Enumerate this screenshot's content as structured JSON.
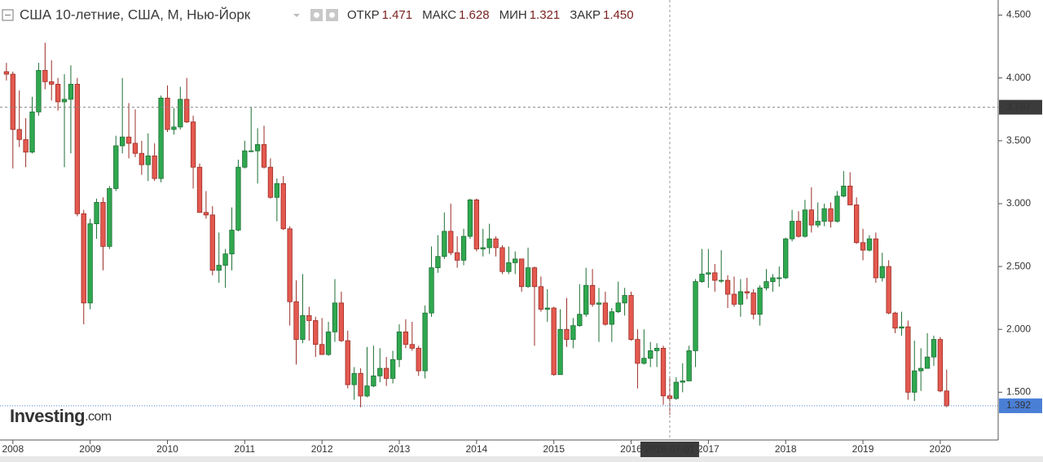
{
  "chart_data": {
    "type": "candlestick",
    "title": "США 10-летние, США, М, Нью-Йорк",
    "logo": {
      "main": "Investing",
      "suffix": ".com"
    },
    "x": [
      "2007-12-01",
      "2008-01-01",
      "2008-02-01",
      "2008-03-01",
      "2008-04-01",
      "2008-05-01",
      "2008-06-01",
      "2008-07-01",
      "2008-08-01",
      "2008-09-01",
      "2008-10-01",
      "2008-11-01",
      "2008-12-01",
      "2009-01-01",
      "2009-02-01",
      "2009-03-01",
      "2009-04-01",
      "2009-05-01",
      "2009-06-01",
      "2009-07-01",
      "2009-08-01",
      "2009-09-01",
      "2009-10-01",
      "2009-11-01",
      "2009-12-01",
      "2010-01-01",
      "2010-02-01",
      "2010-03-01",
      "2010-04-01",
      "2010-05-01",
      "2010-06-01",
      "2010-07-01",
      "2010-08-01",
      "2010-09-01",
      "2010-10-01",
      "2010-11-01",
      "2010-12-01",
      "2011-01-01",
      "2011-02-01",
      "2011-03-01",
      "2011-04-01",
      "2011-05-01",
      "2011-06-01",
      "2011-07-01",
      "2011-08-01",
      "2011-09-01",
      "2011-10-01",
      "2011-11-01",
      "2011-12-01",
      "2012-01-01",
      "2012-02-01",
      "2012-03-01",
      "2012-04-01",
      "2012-05-01",
      "2012-06-01",
      "2012-07-01",
      "2012-08-01",
      "2012-09-01",
      "2012-10-01",
      "2012-11-01",
      "2012-12-01",
      "2013-01-01",
      "2013-02-01",
      "2013-03-01",
      "2013-04-01",
      "2013-05-01",
      "2013-06-01",
      "2013-07-01",
      "2013-08-01",
      "2013-09-01",
      "2013-10-01",
      "2013-11-01",
      "2013-12-01",
      "2014-01-01",
      "2014-02-01",
      "2014-03-01",
      "2014-04-01",
      "2014-05-01",
      "2014-06-01",
      "2014-07-01",
      "2014-08-01",
      "2014-09-01",
      "2014-10-01",
      "2014-11-01",
      "2014-12-01",
      "2015-01-01",
      "2015-02-01",
      "2015-03-01",
      "2015-04-01",
      "2015-05-01",
      "2015-06-01",
      "2015-07-01",
      "2015-08-01",
      "2015-09-01",
      "2015-10-01",
      "2015-11-01",
      "2015-12-01",
      "2016-01-01",
      "2016-02-01",
      "2016-03-01",
      "2016-04-01",
      "2016-05-01",
      "2016-06-01",
      "2016-07-01",
      "2016-08-01",
      "2016-09-01",
      "2016-10-01",
      "2016-11-01",
      "2016-12-01",
      "2017-01-01",
      "2017-02-01",
      "2017-03-01",
      "2017-04-01",
      "2017-05-01",
      "2017-06-01",
      "2017-07-01",
      "2017-08-01",
      "2017-09-01",
      "2017-10-01",
      "2017-11-01",
      "2017-12-01",
      "2018-01-01",
      "2018-02-01",
      "2018-03-01",
      "2018-04-01",
      "2018-05-01",
      "2018-06-01",
      "2018-07-01",
      "2018-08-01",
      "2018-09-01",
      "2018-10-01",
      "2018-11-01",
      "2018-12-01",
      "2019-01-01",
      "2019-02-01",
      "2019-03-01",
      "2019-04-01",
      "2019-05-01",
      "2019-06-01",
      "2019-07-01",
      "2019-08-01",
      "2019-09-01",
      "2019-10-01",
      "2019-11-01",
      "2019-12-01",
      "2020-01-01",
      "2020-02-01"
    ],
    "open": [
      4.05,
      4.03,
      3.59,
      3.51,
      3.41,
      3.73,
      4.06,
      3.97,
      3.95,
      3.81,
      3.83,
      3.95,
      2.92,
      2.21,
      2.84,
      3.01,
      2.66,
      3.12,
      3.46,
      3.53,
      3.48,
      3.4,
      3.31,
      3.38,
      3.2,
      3.84,
      3.59,
      3.61,
      3.83,
      3.65,
      3.29,
      2.93,
      2.91,
      2.47,
      2.51,
      2.6,
      2.79,
      3.29,
      3.42,
      3.42,
      3.47,
      3.29,
      3.05,
      3.16,
      2.8,
      2.22,
      1.92,
      2.11,
      2.07,
      1.88,
      1.8,
      1.98,
      2.21,
      1.91,
      1.56,
      1.65,
      1.47,
      1.55,
      1.63,
      1.69,
      1.61,
      1.76,
      1.98,
      1.88,
      1.85,
      1.67,
      2.13,
      2.49,
      2.58,
      2.78,
      2.61,
      2.55,
      2.74,
      3.03,
      2.64,
      2.65,
      2.72,
      2.65,
      2.46,
      2.53,
      2.56,
      2.34,
      2.49,
      2.34,
      2.16,
      2.17,
      1.64,
      2.0,
      1.92,
      2.03,
      2.12,
      2.35,
      2.2,
      2.21,
      2.04,
      2.14,
      2.21,
      2.27,
      1.92,
      1.73,
      1.77,
      1.83,
      1.85,
      1.471,
      1.45,
      1.58,
      1.59,
      1.83,
      2.38,
      2.44,
      2.45,
      2.39,
      2.39,
      2.28,
      2.2,
      2.3,
      2.29,
      2.12,
      2.33,
      2.38,
      2.41,
      2.41,
      2.72,
      2.86,
      2.74,
      2.95,
      2.83,
      2.86,
      2.96,
      2.86,
      3.06,
      3.14,
      2.99,
      2.69,
      2.63,
      2.72,
      2.41,
      2.5,
      2.13,
      2.01,
      2.02,
      1.5,
      1.67,
      1.69,
      1.78,
      1.92,
      1.51
    ],
    "high": [
      4.12,
      4.05,
      3.9,
      3.68,
      3.85,
      4.12,
      4.28,
      4.14,
      4.0,
      4.03,
      4.1,
      4.0,
      2.95,
      2.88,
      3.04,
      3.05,
      3.14,
      3.54,
      4.0,
      3.8,
      3.75,
      3.5,
      3.56,
      3.48,
      3.86,
      3.94,
      3.76,
      3.93,
      4.0,
      3.7,
      3.32,
      3.1,
      2.98,
      2.77,
      2.64,
      2.97,
      3.35,
      3.5,
      3.77,
      3.6,
      3.62,
      3.36,
      3.2,
      3.22,
      2.82,
      2.39,
      2.44,
      2.18,
      2.1,
      2.09,
      2.06,
      2.4,
      2.3,
      1.99,
      1.7,
      1.69,
      1.86,
      1.87,
      1.85,
      1.78,
      1.83,
      2.04,
      2.08,
      2.06,
      1.87,
      2.19,
      2.66,
      2.75,
      2.93,
      3.0,
      2.74,
      2.8,
      3.04,
      3.04,
      2.8,
      2.84,
      2.74,
      2.67,
      2.66,
      2.62,
      2.56,
      2.65,
      2.5,
      2.42,
      2.32,
      2.18,
      2.16,
      2.25,
      2.09,
      2.36,
      2.49,
      2.48,
      2.33,
      2.3,
      2.17,
      2.38,
      2.33,
      2.3,
      2.0,
      2.0,
      1.9,
      1.89,
      1.87,
      1.628,
      1.62,
      1.73,
      1.87,
      2.4,
      2.64,
      2.64,
      2.52,
      2.63,
      2.43,
      2.42,
      2.4,
      2.41,
      2.32,
      2.35,
      2.48,
      2.44,
      2.5,
      2.73,
      2.95,
      2.94,
      3.03,
      3.13,
      3.01,
      3.0,
      3.01,
      3.1,
      3.26,
      3.25,
      3.05,
      2.8,
      2.75,
      2.77,
      2.61,
      2.55,
      2.14,
      2.14,
      2.07,
      1.91,
      1.85,
      1.97,
      1.95,
      1.94,
      1.68
    ],
    "low": [
      3.98,
      3.28,
      3.45,
      3.29,
      3.4,
      3.7,
      3.91,
      3.82,
      3.74,
      3.29,
      3.4,
      2.9,
      2.04,
      2.16,
      2.72,
      2.47,
      2.64,
      3.1,
      3.4,
      3.36,
      3.37,
      3.23,
      3.18,
      3.18,
      3.17,
      3.57,
      3.55,
      3.59,
      3.64,
      3.12,
      2.93,
      2.88,
      2.43,
      2.37,
      2.33,
      2.47,
      2.78,
      3.28,
      3.41,
      3.16,
      3.28,
      3.04,
      2.86,
      2.79,
      2.03,
      1.72,
      1.89,
      1.91,
      1.78,
      1.8,
      1.79,
      1.9,
      1.9,
      1.53,
      1.44,
      1.38,
      1.46,
      1.54,
      1.58,
      1.55,
      1.57,
      1.7,
      1.85,
      1.83,
      1.63,
      1.61,
      2.1,
      2.45,
      2.56,
      2.59,
      2.49,
      2.51,
      2.72,
      2.62,
      2.58,
      2.6,
      2.58,
      2.44,
      2.44,
      2.44,
      2.3,
      2.33,
      1.87,
      2.14,
      2.06,
      1.63,
      1.64,
      1.86,
      1.85,
      2.02,
      2.1,
      2.18,
      1.9,
      2.03,
      1.9,
      2.13,
      2.11,
      1.91,
      1.53,
      1.72,
      1.7,
      1.7,
      1.4,
      1.321,
      1.44,
      1.5,
      1.59,
      1.7,
      2.37,
      2.33,
      2.3,
      2.37,
      2.17,
      2.18,
      2.1,
      2.24,
      2.08,
      2.03,
      2.31,
      2.3,
      2.34,
      2.4,
      2.7,
      2.73,
      2.73,
      2.77,
      2.81,
      2.82,
      2.81,
      2.85,
      3.05,
      2.99,
      2.68,
      2.55,
      2.62,
      2.37,
      2.38,
      2.12,
      1.97,
      1.95,
      1.44,
      1.43,
      1.51,
      1.69,
      1.71,
      1.5,
      1.38
    ],
    "close": [
      4.03,
      3.59,
      3.51,
      3.41,
      3.73,
      4.06,
      3.97,
      3.95,
      3.81,
      3.83,
      3.95,
      2.92,
      2.21,
      2.84,
      3.01,
      2.66,
      3.12,
      3.46,
      3.53,
      3.48,
      3.4,
      3.31,
      3.38,
      3.2,
      3.84,
      3.59,
      3.61,
      3.83,
      3.65,
      3.29,
      2.93,
      2.91,
      2.47,
      2.51,
      2.6,
      2.79,
      3.29,
      3.42,
      3.42,
      3.47,
      3.29,
      3.05,
      3.16,
      2.8,
      2.22,
      1.92,
      2.11,
      2.07,
      1.88,
      1.8,
      1.98,
      2.21,
      1.91,
      1.56,
      1.65,
      1.47,
      1.55,
      1.63,
      1.69,
      1.61,
      1.76,
      1.98,
      1.88,
      1.85,
      1.67,
      2.13,
      2.49,
      2.58,
      2.78,
      2.61,
      2.55,
      2.74,
      3.03,
      2.64,
      2.65,
      2.72,
      2.65,
      2.46,
      2.53,
      2.56,
      2.34,
      2.49,
      2.34,
      2.16,
      2.17,
      1.64,
      2.0,
      1.92,
      2.03,
      2.12,
      2.35,
      2.2,
      2.21,
      2.04,
      2.14,
      2.21,
      2.27,
      1.92,
      1.73,
      1.77,
      1.83,
      1.85,
      1.471,
      1.45,
      1.58,
      1.59,
      1.83,
      2.38,
      2.44,
      2.45,
      2.39,
      2.39,
      2.28,
      2.2,
      2.3,
      2.29,
      2.12,
      2.33,
      2.38,
      2.41,
      2.41,
      2.72,
      2.86,
      2.74,
      2.95,
      2.83,
      2.86,
      2.96,
      2.86,
      3.06,
      3.14,
      2.99,
      2.69,
      2.63,
      2.72,
      2.41,
      2.5,
      2.13,
      2.01,
      2.02,
      1.5,
      1.67,
      1.69,
      1.78,
      1.92,
      1.51,
      1.392
    ],
    "up_color": "#2fa84f",
    "down_color": "#e4594f",
    "ylim": [
      1.12,
      4.62
    ],
    "yticks": [
      {
        "value": 1.5,
        "label": "1.500"
      },
      {
        "value": 2,
        "label": "2.000"
      },
      {
        "value": 2.5,
        "label": "2.500"
      },
      {
        "value": 3,
        "label": "3.000"
      },
      {
        "value": 3.5,
        "label": "3.500"
      },
      {
        "value": 4,
        "label": "4.000"
      },
      {
        "value": 4.5,
        "label": "4.500"
      }
    ],
    "xlim": [
      "2007-11-01",
      "2020-10-01"
    ],
    "xticks": [
      {
        "value": "2008-01-01",
        "label": "2008"
      },
      {
        "value": "2009-01-01",
        "label": "2009"
      },
      {
        "value": "2010-01-01",
        "label": "2010"
      },
      {
        "value": "2011-01-01",
        "label": "2011"
      },
      {
        "value": "2012-01-01",
        "label": "2012"
      },
      {
        "value": "2013-01-01",
        "label": "2013"
      },
      {
        "value": "2014-01-01",
        "label": "2014"
      },
      {
        "value": "2015-01-01",
        "label": "2015"
      },
      {
        "value": "2016-01-01",
        "label": "2016"
      },
      {
        "value": "2017-01-01",
        "label": "2017"
      },
      {
        "value": "2018-01-01",
        "label": "2018"
      },
      {
        "value": "2019-01-01",
        "label": "2019"
      },
      {
        "value": "2020-01-01",
        "label": "2020"
      }
    ],
    "crosshair": {
      "x": "2016-07-01",
      "y": {
        "value": 3.767,
        "label": "3.767"
      },
      "ohlc": [
        {
          "name": "ОТКР",
          "label": "1.471"
        },
        {
          "name": "МАКС",
          "label": "1.628"
        },
        {
          "name": "МИН",
          "label": "1.321"
        },
        {
          "name": "ЗАКР",
          "label": "1.450"
        }
      ]
    }
  }
}
